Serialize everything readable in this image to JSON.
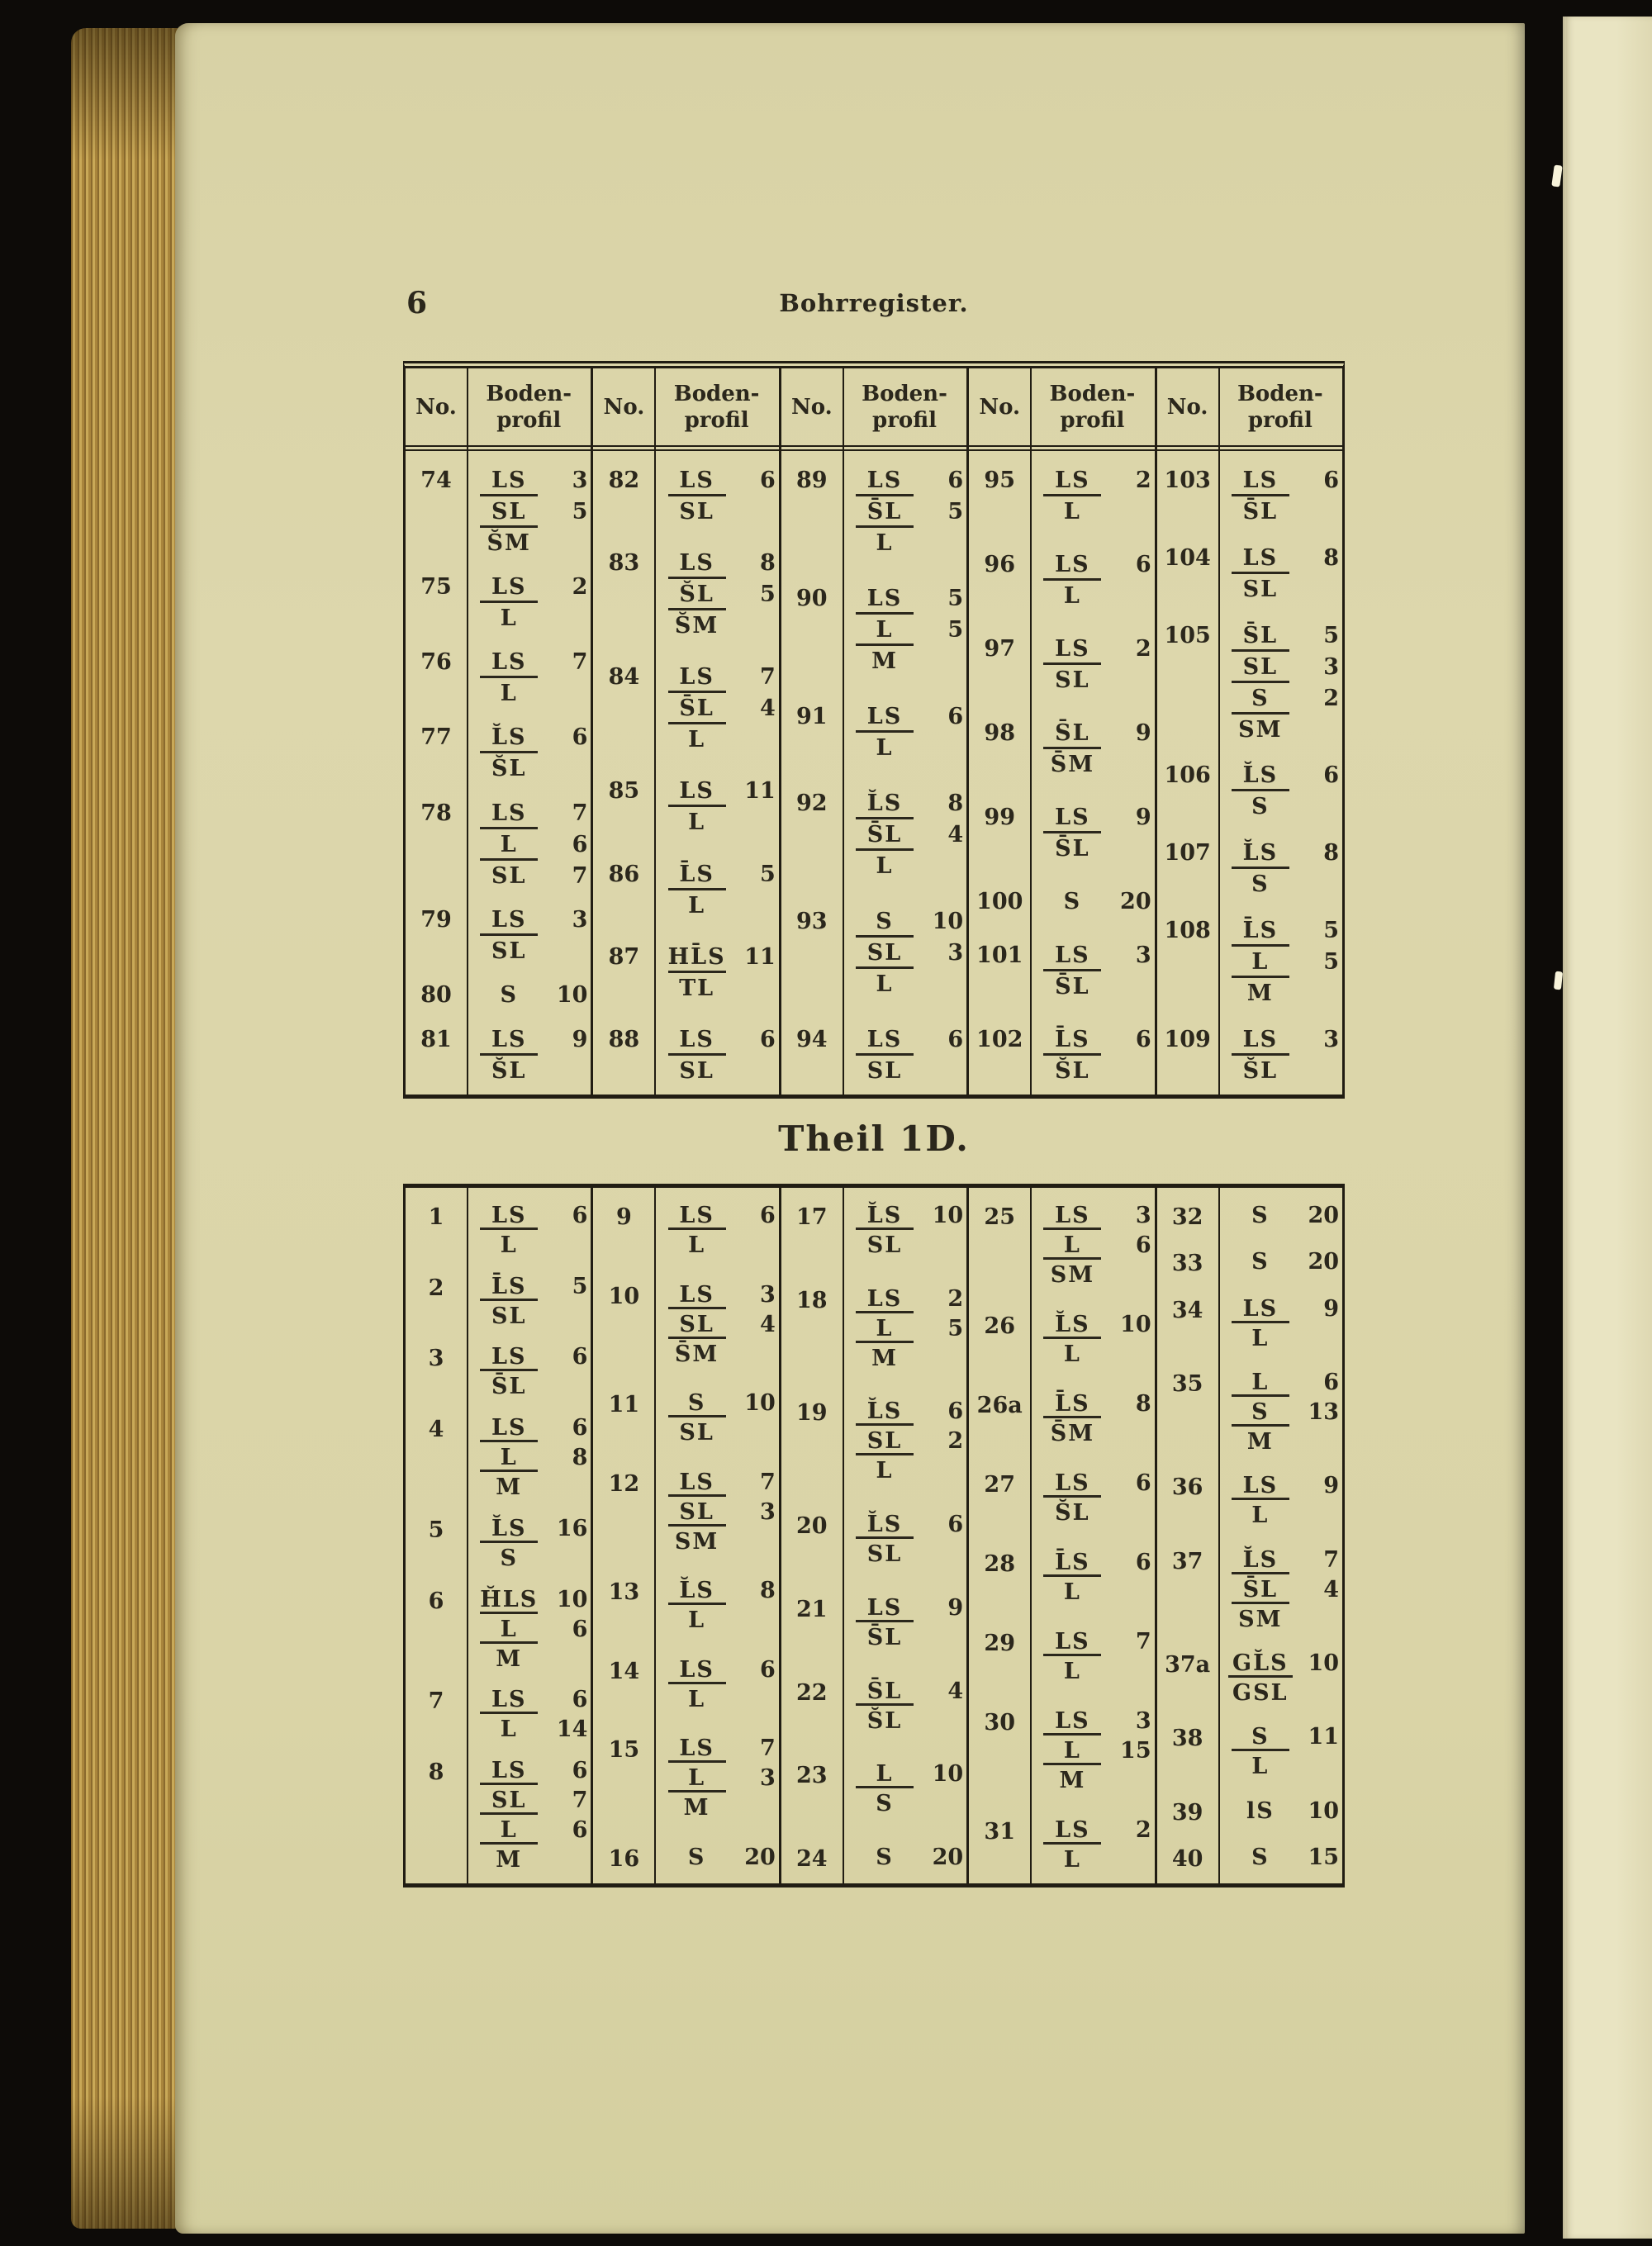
{
  "page": {
    "page_number": "6",
    "running_title": "Bohrregister.",
    "section_heading": "Theil 1D.",
    "column_header": {
      "no": "No.",
      "profile_line1": "Boden-",
      "profile_line2": "profil"
    }
  },
  "colors": {
    "paper": "#dbd5a8",
    "ink": "#2b271c",
    "edge_gilt": "#c9a958",
    "background": "#0d0b08"
  },
  "table1": {
    "columns": [
      [
        {
          "no": "74",
          "layers": [
            [
              "LS",
              "3"
            ],
            [
              "SL",
              "5"
            ],
            [
              "S̆M",
              ""
            ]
          ]
        },
        {
          "no": "75",
          "layers": [
            [
              "LS",
              "2"
            ],
            [
              "L",
              ""
            ]
          ]
        },
        {
          "no": "76",
          "layers": [
            [
              "LS",
              "7"
            ],
            [
              "L",
              ""
            ]
          ]
        },
        {
          "no": "77",
          "layers": [
            [
              "L̆S",
              "6"
            ],
            [
              "S̆L",
              ""
            ]
          ]
        },
        {
          "no": "78",
          "layers": [
            [
              "LS",
              "7"
            ],
            [
              "L",
              "6"
            ],
            [
              "SL",
              "7"
            ]
          ]
        },
        {
          "no": "79",
          "layers": [
            [
              "LS",
              "3"
            ],
            [
              "SL",
              ""
            ]
          ]
        },
        {
          "no": "80",
          "layers": [
            [
              "S",
              "10"
            ]
          ]
        },
        {
          "no": "81",
          "layers": [
            [
              "LS",
              "9"
            ],
            [
              "S̆L",
              ""
            ]
          ]
        }
      ],
      [
        {
          "no": "82",
          "layers": [
            [
              "LS",
              "6"
            ],
            [
              "SL",
              ""
            ]
          ]
        },
        {
          "no": "83",
          "layers": [
            [
              "LS",
              "8"
            ],
            [
              "S̆L",
              "5"
            ],
            [
              "S̆M",
              ""
            ]
          ]
        },
        {
          "no": "84",
          "layers": [
            [
              "LS",
              "7"
            ],
            [
              "S̄L",
              "4"
            ],
            [
              "L",
              ""
            ]
          ]
        },
        {
          "no": "85",
          "layers": [
            [
              "LS",
              "11"
            ],
            [
              "L",
              ""
            ]
          ]
        },
        {
          "no": "86",
          "layers": [
            [
              "L̄S",
              "5"
            ],
            [
              "L",
              ""
            ]
          ]
        },
        {
          "no": "87",
          "layers": [
            [
              "HL̄S",
              "11"
            ],
            [
              "TL",
              ""
            ]
          ]
        },
        {
          "no": "88",
          "layers": [
            [
              "LS",
              "6"
            ],
            [
              "SL",
              ""
            ]
          ]
        }
      ],
      [
        {
          "no": "89",
          "layers": [
            [
              "LS",
              "6"
            ],
            [
              "S̄L",
              "5"
            ],
            [
              "L",
              ""
            ]
          ]
        },
        {
          "no": "90",
          "layers": [
            [
              "LS",
              "5"
            ],
            [
              "L",
              "5"
            ],
            [
              "M",
              ""
            ]
          ]
        },
        {
          "no": "91",
          "layers": [
            [
              "LS",
              "6"
            ],
            [
              "L",
              ""
            ]
          ]
        },
        {
          "no": "92",
          "layers": [
            [
              "L̆S",
              "8"
            ],
            [
              "S̄L",
              "4"
            ],
            [
              "L",
              ""
            ]
          ]
        },
        {
          "no": "93",
          "layers": [
            [
              "S",
              "10"
            ],
            [
              "SL",
              "3"
            ],
            [
              "L",
              ""
            ]
          ]
        },
        {
          "no": "94",
          "layers": [
            [
              "LS",
              "6"
            ],
            [
              "SL",
              ""
            ]
          ]
        }
      ],
      [
        {
          "no": "95",
          "layers": [
            [
              "LS",
              "2"
            ],
            [
              "L",
              ""
            ]
          ]
        },
        {
          "no": "96",
          "layers": [
            [
              "LS",
              "6"
            ],
            [
              "L",
              ""
            ]
          ]
        },
        {
          "no": "97",
          "layers": [
            [
              "LS",
              "2"
            ],
            [
              "SL",
              ""
            ]
          ]
        },
        {
          "no": "98",
          "layers": [
            [
              "S̄L",
              "9"
            ],
            [
              "S̄M",
              ""
            ]
          ]
        },
        {
          "no": "99",
          "layers": [
            [
              "LS",
              "9"
            ],
            [
              "S̄L",
              ""
            ]
          ]
        },
        {
          "no": "100",
          "layers": [
            [
              "S",
              "20"
            ]
          ]
        },
        {
          "no": "101",
          "layers": [
            [
              "LS",
              "3"
            ],
            [
              "S̄L",
              ""
            ]
          ]
        },
        {
          "no": "102",
          "layers": [
            [
              "L̄S",
              "6"
            ],
            [
              "S̆L",
              ""
            ]
          ]
        }
      ],
      [
        {
          "no": "103",
          "layers": [
            [
              "LS",
              "6"
            ],
            [
              "S̄L",
              ""
            ]
          ]
        },
        {
          "no": "104",
          "layers": [
            [
              "LS",
              "8"
            ],
            [
              "SL",
              ""
            ]
          ]
        },
        {
          "no": "105",
          "layers": [
            [
              "S̄L",
              "5"
            ],
            [
              "SL",
              "3"
            ],
            [
              "S",
              "2"
            ],
            [
              "SM",
              ""
            ]
          ]
        },
        {
          "no": "106",
          "layers": [
            [
              "L̆S",
              "6"
            ],
            [
              "S",
              ""
            ]
          ]
        },
        {
          "no": "107",
          "layers": [
            [
              "L̆S",
              "8"
            ],
            [
              "S",
              ""
            ]
          ]
        },
        {
          "no": "108",
          "layers": [
            [
              "L̄S",
              "5"
            ],
            [
              "L",
              "5"
            ],
            [
              "M",
              ""
            ]
          ]
        },
        {
          "no": "109",
          "layers": [
            [
              "LS",
              "3"
            ],
            [
              "S̆L",
              ""
            ]
          ]
        }
      ]
    ]
  },
  "table2": {
    "columns": [
      [
        {
          "no": "1",
          "layers": [
            [
              "LS",
              "6"
            ],
            [
              "L",
              ""
            ]
          ]
        },
        {
          "no": "2",
          "layers": [
            [
              "L̄S",
              "5"
            ],
            [
              "SL",
              ""
            ]
          ]
        },
        {
          "no": "3",
          "layers": [
            [
              "LS",
              "6"
            ],
            [
              "S̄L",
              ""
            ]
          ]
        },
        {
          "no": "4",
          "layers": [
            [
              "LS",
              "6"
            ],
            [
              "L",
              "8"
            ],
            [
              "M",
              ""
            ]
          ]
        },
        {
          "no": "5",
          "layers": [
            [
              "L̆S",
              "16"
            ],
            [
              "S",
              ""
            ]
          ]
        },
        {
          "no": "6",
          "layers": [
            [
              "H̆LS",
              "10"
            ],
            [
              "L",
              "6"
            ],
            [
              "M",
              ""
            ]
          ]
        },
        {
          "no": "7",
          "layers": [
            [
              "LS",
              "6"
            ],
            [
              "L",
              "14"
            ]
          ]
        },
        {
          "no": "8",
          "layers": [
            [
              "LS",
              "6"
            ],
            [
              "SL",
              "7"
            ],
            [
              "L",
              "6"
            ],
            [
              "M",
              ""
            ]
          ]
        }
      ],
      [
        {
          "no": "9",
          "layers": [
            [
              "LS",
              "6"
            ],
            [
              "L",
              ""
            ]
          ]
        },
        {
          "no": "10",
          "layers": [
            [
              "LS",
              "3"
            ],
            [
              "SL",
              "4"
            ],
            [
              "S̄M",
              ""
            ]
          ]
        },
        {
          "no": "11",
          "layers": [
            [
              "S",
              "10"
            ],
            [
              "SL",
              ""
            ]
          ]
        },
        {
          "no": "12",
          "layers": [
            [
              "LS",
              "7"
            ],
            [
              "SL",
              "3"
            ],
            [
              "SM",
              ""
            ]
          ]
        },
        {
          "no": "13",
          "layers": [
            [
              "L̆S",
              "8"
            ],
            [
              "L",
              ""
            ]
          ]
        },
        {
          "no": "14",
          "layers": [
            [
              "LS",
              "6"
            ],
            [
              "L",
              ""
            ]
          ]
        },
        {
          "no": "15",
          "layers": [
            [
              "LS",
              "7"
            ],
            [
              "L",
              "3"
            ],
            [
              "M",
              ""
            ]
          ]
        },
        {
          "no": "16",
          "layers": [
            [
              "S",
              "20"
            ]
          ]
        }
      ],
      [
        {
          "no": "17",
          "layers": [
            [
              "L̆S",
              "10"
            ],
            [
              "SL",
              ""
            ]
          ]
        },
        {
          "no": "18",
          "layers": [
            [
              "LS",
              "2"
            ],
            [
              "L",
              "5"
            ],
            [
              "M",
              ""
            ]
          ]
        },
        {
          "no": "19",
          "layers": [
            [
              "L̆S",
              "6"
            ],
            [
              "SL",
              "2"
            ],
            [
              "L",
              ""
            ]
          ]
        },
        {
          "no": "20",
          "layers": [
            [
              "L̆S",
              "6"
            ],
            [
              "SL",
              ""
            ]
          ]
        },
        {
          "no": "21",
          "layers": [
            [
              "LS",
              "9"
            ],
            [
              "S̄L",
              ""
            ]
          ]
        },
        {
          "no": "22",
          "layers": [
            [
              "S̄L",
              "4"
            ],
            [
              "S̆L",
              ""
            ]
          ]
        },
        {
          "no": "23",
          "layers": [
            [
              "L",
              "10"
            ],
            [
              "S",
              ""
            ]
          ]
        },
        {
          "no": "24",
          "layers": [
            [
              "S",
              "20"
            ]
          ]
        }
      ],
      [
        {
          "no": "25",
          "layers": [
            [
              "LS",
              "3"
            ],
            [
              "L",
              "6"
            ],
            [
              "SM",
              ""
            ]
          ]
        },
        {
          "no": "26",
          "layers": [
            [
              "L̆S",
              "10"
            ],
            [
              "L",
              ""
            ]
          ]
        },
        {
          "no": "26a",
          "layers": [
            [
              "L̄S",
              "8"
            ],
            [
              "S̄M",
              ""
            ]
          ]
        },
        {
          "no": "27",
          "layers": [
            [
              "LS",
              "6"
            ],
            [
              "S̆L",
              ""
            ]
          ]
        },
        {
          "no": "28",
          "layers": [
            [
              "L̄S",
              "6"
            ],
            [
              "L",
              ""
            ]
          ]
        },
        {
          "no": "29",
          "layers": [
            [
              "LS",
              "7"
            ],
            [
              "L",
              ""
            ]
          ]
        },
        {
          "no": "30",
          "layers": [
            [
              "LS",
              "3"
            ],
            [
              "L",
              "15"
            ],
            [
              "M",
              ""
            ]
          ]
        },
        {
          "no": "31",
          "layers": [
            [
              "LS",
              "2"
            ],
            [
              "L",
              ""
            ]
          ]
        }
      ],
      [
        {
          "no": "32",
          "layers": [
            [
              "S",
              "20"
            ]
          ]
        },
        {
          "no": "33",
          "layers": [
            [
              "S",
              "20"
            ]
          ]
        },
        {
          "no": "34",
          "layers": [
            [
              "LS",
              "9"
            ],
            [
              "L",
              ""
            ]
          ]
        },
        {
          "no": "35",
          "layers": [
            [
              "L",
              "6"
            ],
            [
              "S",
              "13"
            ],
            [
              "M",
              ""
            ]
          ]
        },
        {
          "no": "36",
          "layers": [
            [
              "LS",
              "9"
            ],
            [
              "L",
              ""
            ]
          ]
        },
        {
          "no": "37",
          "layers": [
            [
              "L̆S",
              "7"
            ],
            [
              "S̄L",
              "4"
            ],
            [
              "SM",
              ""
            ]
          ]
        },
        {
          "no": "37a",
          "layers": [
            [
              "GL̆S",
              "10"
            ],
            [
              "GSL",
              ""
            ]
          ]
        },
        {
          "no": "38",
          "layers": [
            [
              "S",
              "11"
            ],
            [
              "L",
              ""
            ]
          ]
        },
        {
          "no": "39",
          "layers": [
            [
              "lS",
              "10"
            ]
          ]
        },
        {
          "no": "40",
          "layers": [
            [
              "S",
              "15"
            ]
          ]
        }
      ]
    ]
  }
}
